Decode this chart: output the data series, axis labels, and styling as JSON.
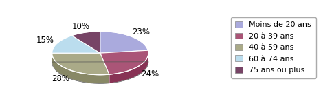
{
  "labels": [
    "Moins de 20 ans",
    "20 à 39 ans",
    "40 à 59 ans",
    "60 à 74 ans",
    "75 ans ou plus"
  ],
  "values": [
    23,
    24,
    28,
    15,
    10
  ],
  "colors_top": [
    "#aaaadd",
    "#aa5577",
    "#aaaa88",
    "#bbddee",
    "#774466"
  ],
  "colors_side": [
    "#8888bb",
    "#883355",
    "#888866",
    "#99bbcc",
    "#553344"
  ],
  "pct_labels": [
    "23%",
    "24%",
    "28%",
    "15%",
    "10%"
  ],
  "background_color": "#ffffff",
  "legend_fontsize": 8,
  "pct_fontsize": 8.5,
  "startangle": 90,
  "depth": 0.18,
  "aspect_ratio": 0.45
}
